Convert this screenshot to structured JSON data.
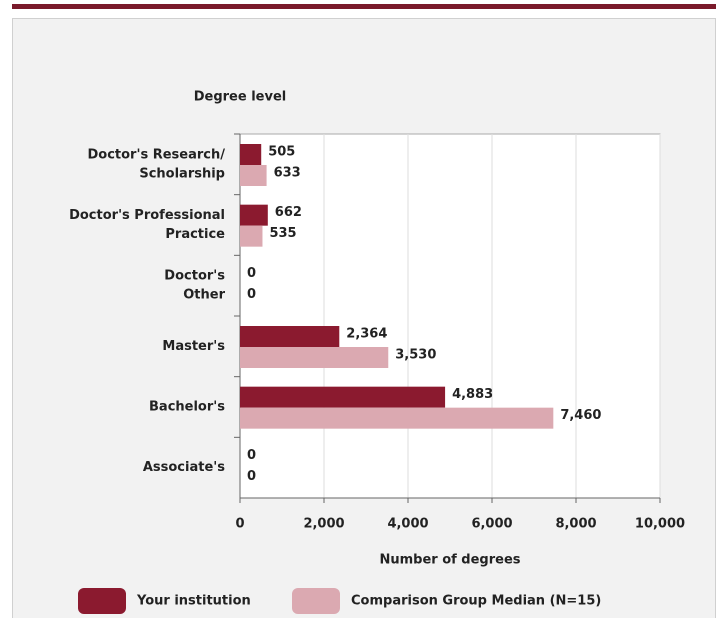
{
  "chart_data": {
    "type": "hbar",
    "ylabel": "Degree level",
    "xlabel": "Number of degrees",
    "categories": [
      [
        "Doctor's Research/",
        "Scholarship"
      ],
      [
        "Doctor's Professional",
        "Practice"
      ],
      [
        "Doctor's",
        "Other"
      ],
      [
        "Master's"
      ],
      [
        "Bachelor's"
      ],
      [
        "Associate's"
      ]
    ],
    "series": [
      {
        "name": "Your institution",
        "color": "#8b1a2f",
        "values": [
          505,
          662,
          0,
          2364,
          4883,
          0
        ],
        "value_labels": [
          "505",
          "662",
          "0",
          "2,364",
          "4,883",
          "0"
        ]
      },
      {
        "name": "Comparison Group Median (N=15)",
        "color": "#dba9b1",
        "values": [
          633,
          535,
          0,
          3530,
          7460,
          0
        ],
        "value_labels": [
          "633",
          "535",
          "0",
          "3,530",
          "7,460",
          "0"
        ]
      }
    ],
    "xlim": [
      0,
      10000
    ],
    "xticks": [
      0,
      {
        "value": 2000,
        "label": "2,000"
      },
      {
        "value": 4000,
        "label": "4,000"
      },
      {
        "value": 6000,
        "label": "6,000"
      },
      {
        "value": 8000,
        "label": "8,000"
      },
      {
        "value": 10000,
        "label": "10,000"
      }
    ],
    "grid": true
  }
}
